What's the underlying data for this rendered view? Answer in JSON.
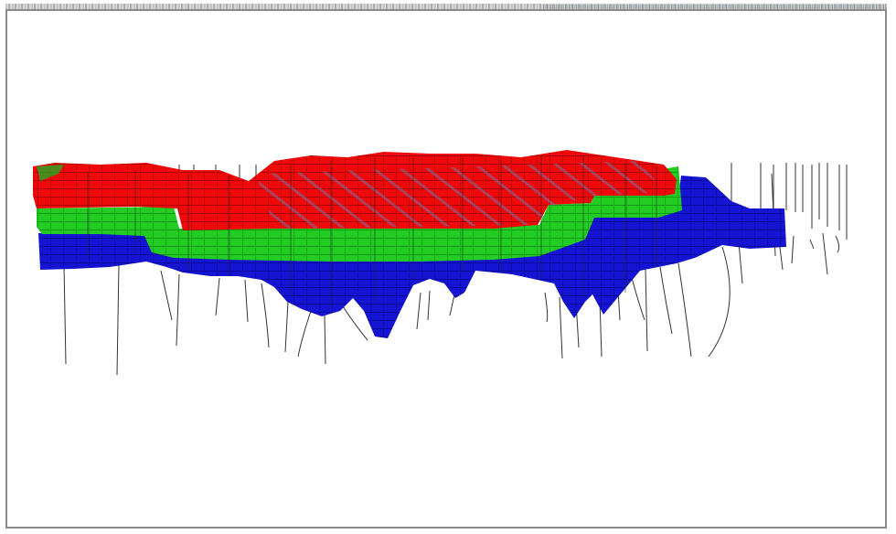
{
  "viewer": {
    "colors": {
      "top_layer": "#ee0a0a",
      "middle_layer": "#22cc22",
      "bottom_layer": "#1414d2",
      "drillhole": "#333333",
      "frame": "#8a8a8a"
    },
    "layers": [
      "top-layer",
      "middle-layer",
      "bottom-layer"
    ]
  }
}
